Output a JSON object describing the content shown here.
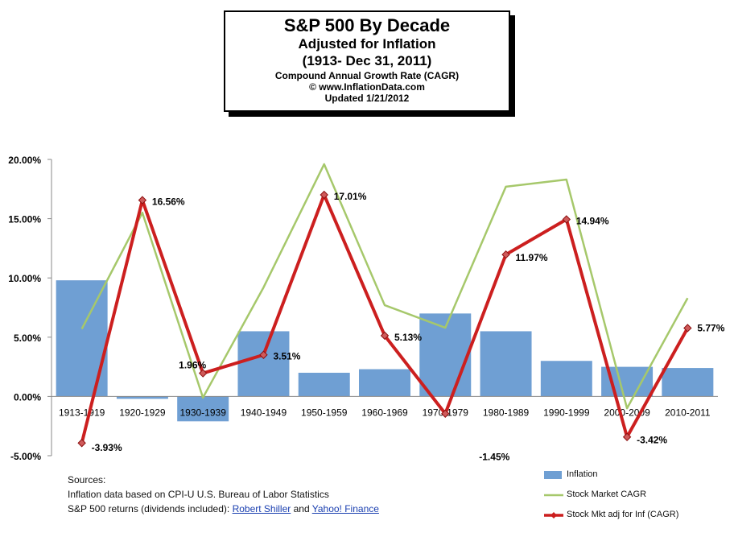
{
  "title": {
    "line1": "S&P 500 By Decade",
    "line2": "Adjusted for Inflation",
    "line3": "(1913- Dec 31, 2011)",
    "line4": "Compound Annual Growth Rate (CAGR)",
    "line5": "© www.InflationData.com",
    "line6": "Updated 1/21/2012"
  },
  "sources": {
    "heading": "Sources:",
    "line1": "Inflation data based on CPI-U U.S. Bureau of Labor Statistics",
    "line2_prefix": "S&P 500 returns (dividends included): ",
    "link1": "Robert Shiller",
    "and": " and ",
    "link2": "Yahoo! Finance"
  },
  "chart_data": {
    "type": "bar",
    "categories": [
      "1913-1919",
      "1920-1929",
      "1930-1939",
      "1940-1949",
      "1950-1959",
      "1960-1969",
      "1970-1979",
      "1980-1989",
      "1990-1999",
      "2000-2009",
      "2010-2011"
    ],
    "ylim": [
      -5,
      20
    ],
    "yticks": [
      -5,
      0,
      5,
      10,
      15,
      20
    ],
    "ytick_labels": [
      "-5.00%",
      "0.00%",
      "5.00%",
      "10.00%",
      "15.00%",
      "20.00%"
    ],
    "grid": false,
    "legend_position": "bottom-right",
    "series": [
      {
        "name": "Inflation",
        "type": "bar",
        "color": "#6f9fd3",
        "values": [
          9.8,
          -0.2,
          -2.1,
          5.5,
          2.0,
          2.3,
          7.0,
          5.5,
          3.0,
          2.5,
          2.4
        ]
      },
      {
        "name": "Stock Market CAGR",
        "type": "line",
        "color": "#a6c86b",
        "values": [
          5.7,
          15.5,
          -0.1,
          9.2,
          19.6,
          7.7,
          5.8,
          17.7,
          18.3,
          -1.0,
          8.3
        ]
      },
      {
        "name": "Stock Mkt adj for Inf (CAGR)",
        "type": "line",
        "color": "#cc1f1f",
        "values": [
          -3.93,
          16.56,
          1.96,
          3.51,
          17.01,
          5.13,
          -1.45,
          11.97,
          14.94,
          -3.42,
          5.77
        ],
        "labels": [
          "-3.93%",
          "16.56%",
          "1.96%",
          "3.51%",
          "17.01%",
          "5.13%",
          "-1.45%",
          "11.97%",
          "14.94%",
          "-3.42%",
          "5.77%"
        ]
      }
    ]
  }
}
